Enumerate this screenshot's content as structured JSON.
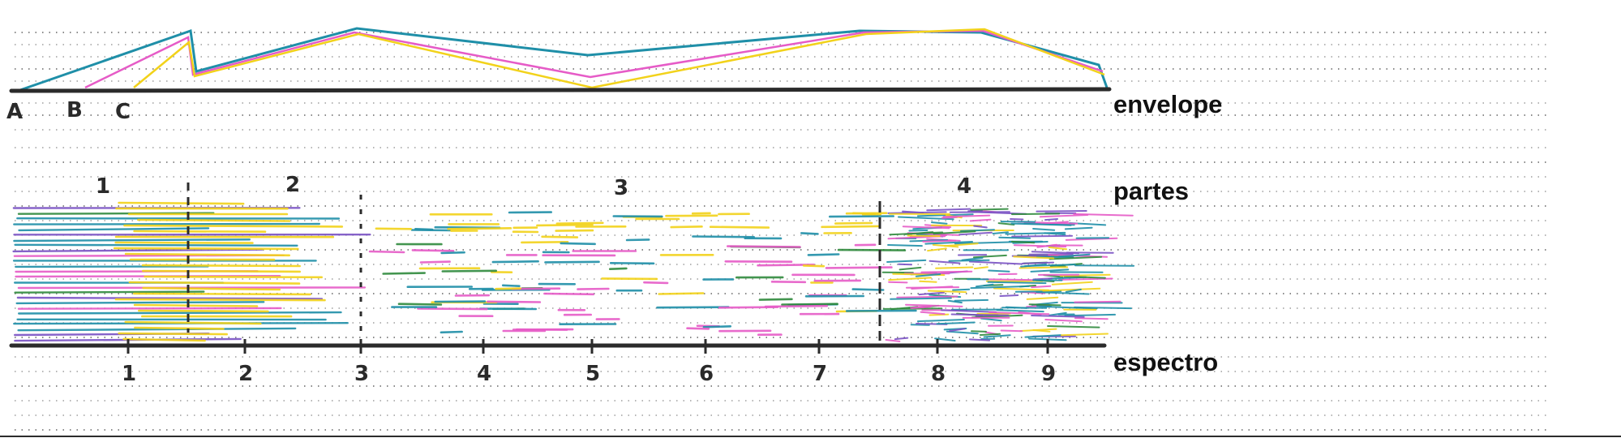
{
  "labels": {
    "envelope": "envelope",
    "partes": "partes",
    "espectro": "espectro"
  },
  "envelope_points": [
    "A",
    "B",
    "C"
  ],
  "part_numbers": [
    "1",
    "2",
    "3",
    "4"
  ],
  "spectrum_ticks": [
    "1",
    "2",
    "3",
    "4",
    "5",
    "6",
    "7",
    "8",
    "9"
  ],
  "colors": {
    "ink": "#2b2b2b",
    "teal": "#1f8fa8",
    "yellow": "#f2d21a",
    "magenta": "#e65bc7",
    "green": "#2f8a3c",
    "purple": "#7a52c4",
    "dot_grid": "#8a8a8a"
  }
}
